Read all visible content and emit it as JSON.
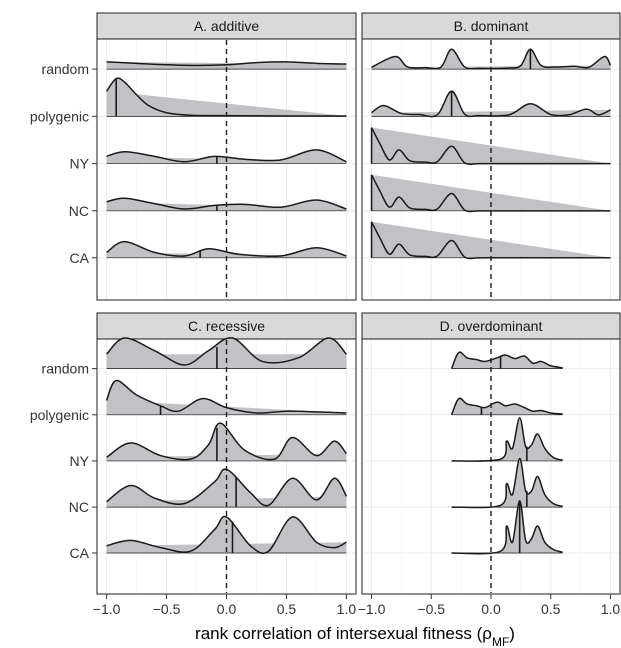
{
  "chart_data": {
    "type": "ridgeline",
    "x_label_text": "rank correlation of intersexual fitness (",
    "x_label_symbol": "ρ",
    "x_label_subscript": "MF",
    "x_label_close": ")",
    "x_ticks": [
      "−1.0",
      "−0.5",
      "0.0",
      "0.5",
      "1.0"
    ],
    "x_tick_values": [
      -1.0,
      -0.5,
      0.0,
      0.5,
      1.0
    ],
    "xlim": [
      -1.08,
      1.08
    ],
    "y_categories": [
      "random",
      "polygenic",
      "NY",
      "NC",
      "CA"
    ],
    "reference_line_x": 0.0,
    "panels": [
      {
        "title": "A. additive",
        "series": [
          {
            "category": "random",
            "median": null,
            "x": [
              -1.0,
              -0.75,
              -0.5,
              -0.25,
              0.0,
              0.25,
              0.5,
              0.75,
              1.0
            ],
            "density": [
              0.2,
              0.16,
              0.12,
              0.1,
              0.12,
              0.18,
              0.2,
              0.16,
              0.14
            ]
          },
          {
            "category": "polygenic",
            "median": -0.92,
            "x": [
              -1.0,
              -0.92,
              -0.85,
              -0.75,
              -0.65,
              -0.5,
              -0.3,
              0.0,
              0.5,
              1.0
            ],
            "density": [
              0.7,
              1.05,
              0.95,
              0.6,
              0.3,
              0.1,
              0.03,
              0.02,
              0.01,
              0.01
            ]
          },
          {
            "category": "NY",
            "median": -0.08,
            "x": [
              -1.0,
              -0.85,
              -0.6,
              -0.35,
              -0.1,
              0.15,
              0.45,
              0.75,
              1.0
            ],
            "density": [
              0.2,
              0.33,
              0.2,
              0.05,
              0.2,
              0.12,
              0.1,
              0.38,
              0.05
            ]
          },
          {
            "category": "NC",
            "median": -0.08,
            "x": [
              -1.0,
              -0.85,
              -0.6,
              -0.35,
              -0.1,
              0.15,
              0.45,
              0.75,
              1.0
            ],
            "density": [
              0.25,
              0.35,
              0.2,
              0.05,
              0.15,
              0.18,
              0.1,
              0.3,
              0.05
            ]
          },
          {
            "category": "CA",
            "median": -0.22,
            "x": [
              -1.0,
              -0.85,
              -0.6,
              -0.35,
              -0.15,
              0.1,
              0.45,
              0.75,
              1.0
            ],
            "density": [
              0.15,
              0.45,
              0.15,
              0.05,
              0.25,
              0.1,
              0.05,
              0.28,
              0.05
            ]
          }
        ]
      },
      {
        "title": "B. dominant",
        "series": [
          {
            "category": "random",
            "median": 0.33,
            "x": [
              -1.0,
              -0.8,
              -0.7,
              -0.55,
              -0.42,
              -0.33,
              -0.22,
              -0.1,
              0.15,
              0.25,
              0.33,
              0.42,
              0.55,
              0.7,
              0.82,
              0.95,
              1.0
            ],
            "density": [
              0.05,
              0.35,
              0.06,
              0.04,
              0.05,
              0.55,
              0.06,
              0.02,
              0.03,
              0.1,
              0.55,
              0.1,
              0.06,
              0.08,
              0.05,
              0.35,
              0.1
            ]
          },
          {
            "category": "polygenic",
            "median": -0.33,
            "x": [
              -1.0,
              -0.9,
              -0.75,
              -0.6,
              -0.45,
              -0.33,
              -0.22,
              -0.1,
              0.15,
              0.33,
              0.5,
              0.65,
              0.8,
              0.9,
              1.0
            ],
            "density": [
              0.1,
              0.3,
              0.08,
              0.05,
              0.04,
              0.7,
              0.06,
              0.02,
              0.04,
              0.35,
              0.05,
              0.04,
              0.2,
              0.04,
              0.18
            ]
          },
          {
            "category": "NY",
            "median": -1.0,
            "x": [
              -1.0,
              -0.93,
              -0.85,
              -0.77,
              -0.68,
              -0.55,
              -0.45,
              -0.33,
              -0.22,
              -0.1,
              0.0,
              1.0
            ],
            "density": [
              1.0,
              0.55,
              0.1,
              0.38,
              0.08,
              0.04,
              0.05,
              0.48,
              0.02,
              0.0,
              0.0,
              0.0
            ]
          },
          {
            "category": "NC",
            "median": -1.0,
            "x": [
              -1.0,
              -0.93,
              -0.85,
              -0.77,
              -0.68,
              -0.55,
              -0.45,
              -0.33,
              -0.22,
              -0.1,
              0.0,
              1.0
            ],
            "density": [
              1.0,
              0.55,
              0.1,
              0.38,
              0.08,
              0.04,
              0.05,
              0.48,
              0.02,
              0.0,
              0.0,
              0.0
            ]
          },
          {
            "category": "CA",
            "median": -1.0,
            "x": [
              -1.0,
              -0.93,
              -0.85,
              -0.77,
              -0.68,
              -0.55,
              -0.45,
              -0.33,
              -0.22,
              -0.1,
              0.0,
              1.0
            ],
            "density": [
              1.0,
              0.55,
              0.1,
              0.38,
              0.08,
              0.04,
              0.05,
              0.48,
              0.02,
              0.0,
              0.0,
              0.0
            ]
          }
        ]
      },
      {
        "title": "C. recessive",
        "series": [
          {
            "category": "random",
            "median": -0.08,
            "x": [
              -1.0,
              -0.85,
              -0.6,
              -0.35,
              -0.15,
              0.05,
              0.3,
              0.6,
              0.85,
              1.0
            ],
            "density": [
              0.4,
              0.85,
              0.5,
              0.1,
              0.5,
              0.85,
              0.2,
              0.3,
              0.85,
              0.4
            ]
          },
          {
            "category": "polygenic",
            "median": -0.55,
            "x": [
              -1.0,
              -0.92,
              -0.75,
              -0.55,
              -0.4,
              -0.2,
              0.0,
              0.25,
              0.5,
              0.75,
              1.0
            ],
            "density": [
              0.4,
              0.95,
              0.55,
              0.25,
              0.1,
              0.45,
              0.2,
              0.05,
              0.1,
              0.08,
              0.05
            ]
          },
          {
            "category": "NY",
            "median": -0.08,
            "x": [
              -1.0,
              -0.8,
              -0.55,
              -0.3,
              -0.15,
              -0.05,
              0.15,
              0.4,
              0.55,
              0.75,
              0.9,
              1.0
            ],
            "density": [
              0.1,
              0.5,
              0.15,
              0.05,
              0.45,
              1.05,
              0.3,
              0.05,
              0.65,
              0.15,
              0.55,
              0.2
            ]
          },
          {
            "category": "NC",
            "median": 0.08,
            "x": [
              -1.0,
              -0.8,
              -0.6,
              -0.35,
              -0.1,
              0.0,
              0.2,
              0.35,
              0.55,
              0.75,
              0.9,
              1.0
            ],
            "density": [
              0.15,
              0.6,
              0.25,
              0.1,
              0.7,
              1.05,
              0.4,
              0.05,
              0.8,
              0.2,
              0.8,
              0.3
            ]
          },
          {
            "category": "CA",
            "median": 0.05,
            "x": [
              -1.0,
              -0.8,
              -0.55,
              -0.3,
              -0.1,
              0.0,
              0.2,
              0.35,
              0.55,
              0.75,
              0.9,
              1.0
            ],
            "density": [
              0.2,
              0.35,
              0.15,
              0.05,
              0.65,
              1.0,
              0.2,
              0.05,
              1.0,
              0.3,
              0.15,
              0.3
            ]
          }
        ]
      },
      {
        "title": "D. overdominant",
        "series": [
          {
            "category": "random",
            "median": 0.08,
            "x": [
              -0.33,
              -0.27,
              -0.2,
              -0.12,
              -0.05,
              0.05,
              0.12,
              0.2,
              0.28,
              0.35,
              0.42,
              0.5,
              0.6
            ],
            "density": [
              0.0,
              0.45,
              0.3,
              0.25,
              0.2,
              0.3,
              0.38,
              0.28,
              0.35,
              0.15,
              0.2,
              0.08,
              0.02
            ]
          },
          {
            "category": "polygenic",
            "median": -0.08,
            "x": [
              -0.33,
              -0.27,
              -0.2,
              -0.12,
              -0.05,
              0.05,
              0.12,
              0.2,
              0.28,
              0.35,
              0.42,
              0.5,
              0.6
            ],
            "density": [
              0.0,
              0.45,
              0.3,
              0.25,
              0.2,
              0.35,
              0.25,
              0.3,
              0.2,
              0.1,
              0.12,
              0.05,
              0.02
            ]
          },
          {
            "category": "NY",
            "median": 0.3,
            "x": [
              -0.33,
              0.08,
              0.13,
              0.18,
              0.24,
              0.29,
              0.34,
              0.39,
              0.45,
              0.52,
              0.6
            ],
            "density": [
              0.0,
              0.05,
              0.55,
              0.35,
              1.2,
              0.4,
              0.45,
              0.75,
              0.35,
              0.1,
              0.02
            ]
          },
          {
            "category": "NC",
            "median": 0.3,
            "x": [
              -0.33,
              0.08,
              0.13,
              0.18,
              0.24,
              0.29,
              0.34,
              0.39,
              0.45,
              0.52,
              0.6
            ],
            "density": [
              0.0,
              0.05,
              0.65,
              0.35,
              1.35,
              0.45,
              0.45,
              0.85,
              0.35,
              0.1,
              0.02
            ]
          },
          {
            "category": "CA",
            "median": 0.24,
            "x": [
              -0.33,
              0.08,
              0.13,
              0.18,
              0.24,
              0.29,
              0.34,
              0.39,
              0.45,
              0.52,
              0.6
            ],
            "density": [
              0.0,
              0.05,
              0.75,
              0.3,
              1.45,
              0.35,
              0.4,
              0.75,
              0.3,
              0.1,
              0.02
            ]
          }
        ]
      }
    ]
  }
}
